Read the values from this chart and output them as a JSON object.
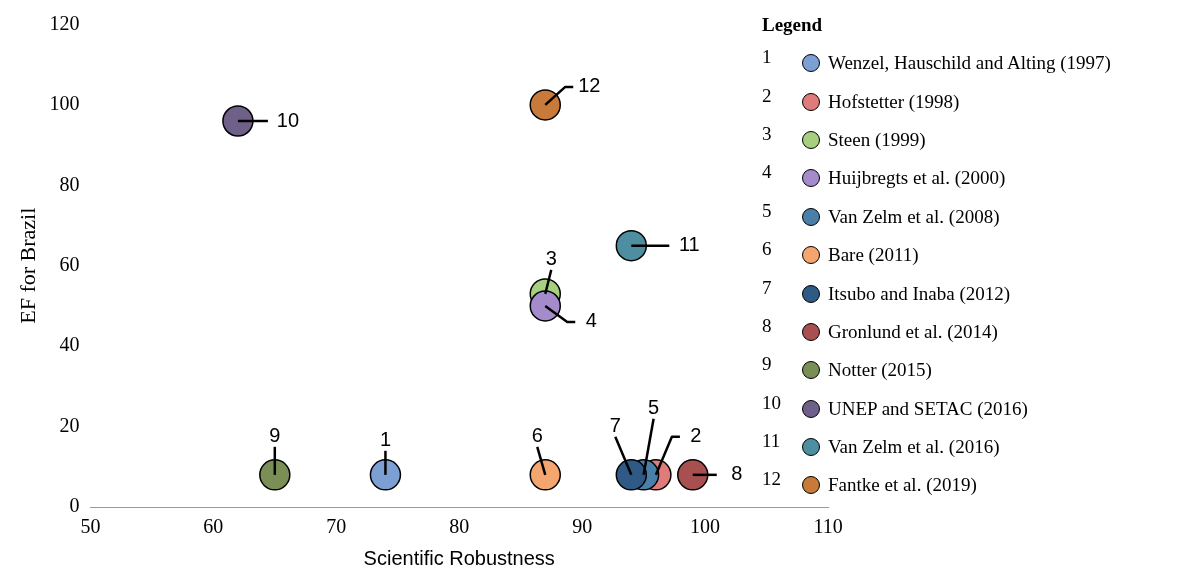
{
  "chart_data": {
    "type": "scatter",
    "xlabel": "Scientific Robustness",
    "ylabel": "EF for Brazil",
    "legend_title": "Legend",
    "legend": "right",
    "grid": false,
    "marker": "circle",
    "xlim": [
      50,
      110
    ],
    "xticks": [
      50,
      60,
      70,
      80,
      90,
      100,
      110
    ],
    "ylim": [
      0,
      120
    ],
    "yticks": [
      0,
      20,
      40,
      60,
      80,
      100,
      120
    ],
    "series": [
      {
        "name": "Wenzel, Hauschild and Alting (1997)",
        "color": "#7da0d4",
        "x": [
          74
        ],
        "values": [
          8
        ]
      },
      {
        "name": "Hofstetter (1998)",
        "color": "#e07b7b",
        "x": [
          96
        ],
        "values": [
          8
        ]
      },
      {
        "name": "Steen (1999)",
        "color": "#a6cf7f",
        "x": [
          87
        ],
        "values": [
          53
        ]
      },
      {
        "name": "Huijbregts et al. (2000)",
        "color": "#a48ccc",
        "x": [
          87
        ],
        "values": [
          50
        ]
      },
      {
        "name": "Van Zelm et al. (2008)",
        "color": "#4a7faa",
        "x": [
          95
        ],
        "values": [
          8
        ]
      },
      {
        "name": "Bare (2011)",
        "color": "#f5a66f",
        "x": [
          87
        ],
        "values": [
          8
        ]
      },
      {
        "name": "Itsubo and Inaba (2012)",
        "color": "#2e5a85",
        "x": [
          94
        ],
        "values": [
          8
        ]
      },
      {
        "name": "Gronlund et al. (2014)",
        "color": "#a85050",
        "x": [
          99
        ],
        "values": [
          8
        ]
      },
      {
        "name": "Notter (2015)",
        "color": "#7a8f55",
        "x": [
          65
        ],
        "values": [
          8
        ]
      },
      {
        "name": "UNEP and SETAC (2016)",
        "color": "#6e6088",
        "x": [
          62
        ],
        "values": [
          96
        ]
      },
      {
        "name": "Van Zelm et al. (2016)",
        "color": "#4d8ea0",
        "x": [
          94
        ],
        "values": [
          65
        ]
      },
      {
        "name": "Fantke et al. (2019)",
        "color": "#c77a3a",
        "x": [
          87
        ],
        "values": [
          100
        ]
      }
    ],
    "annotations": [
      {
        "text": "1",
        "x": 74,
        "y": 8
      },
      {
        "text": "2",
        "x": 96,
        "y": 8
      },
      {
        "text": "3",
        "x": 87,
        "y": 53
      },
      {
        "text": "4",
        "x": 87,
        "y": 50
      },
      {
        "text": "5",
        "x": 95,
        "y": 8
      },
      {
        "text": "6",
        "x": 87,
        "y": 8
      },
      {
        "text": "7",
        "x": 94,
        "y": 8
      },
      {
        "text": "8",
        "x": 99,
        "y": 8
      },
      {
        "text": "9",
        "x": 65,
        "y": 8
      },
      {
        "text": "10",
        "x": 62,
        "y": 96
      },
      {
        "text": "11",
        "x": 94,
        "y": 65
      },
      {
        "text": "12",
        "x": 87,
        "y": 100
      }
    ]
  }
}
